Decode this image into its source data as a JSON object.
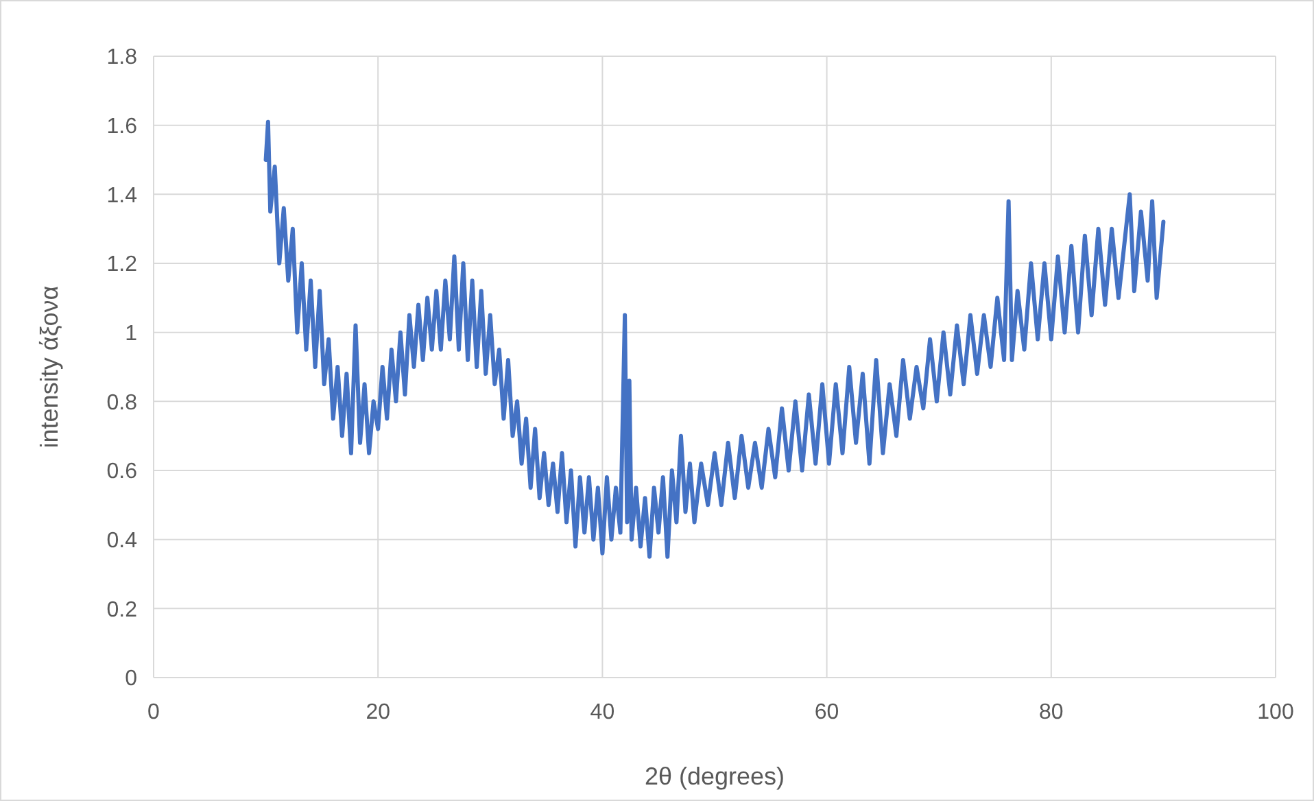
{
  "chart_data": {
    "type": "line",
    "xlabel": "2θ (degrees)",
    "ylabel": "intensity άξονα",
    "xlim": [
      0,
      100
    ],
    "xticks": [
      0,
      20,
      40,
      60,
      80,
      100
    ],
    "ylim": [
      0,
      1.8
    ],
    "yticks": [
      0,
      0.2,
      0.4,
      0.6,
      0.8,
      1,
      1.2,
      1.4,
      1.6,
      1.8
    ],
    "grid": true,
    "marker": "none",
    "line_style": "solid",
    "series": [
      {
        "color": "#4472c4",
        "x": [
          10,
          10.2,
          10.4,
          10.8,
          11.2,
          11.6,
          12,
          12.4,
          12.8,
          13.2,
          13.6,
          14,
          14.4,
          14.8,
          15.2,
          15.6,
          16,
          16.4,
          16.8,
          17.2,
          17.6,
          18,
          18.4,
          18.8,
          19.2,
          19.6,
          20,
          20.4,
          20.8,
          21.2,
          21.6,
          22,
          22.4,
          22.8,
          23.2,
          23.6,
          24,
          24.4,
          24.8,
          25.2,
          25.6,
          26,
          26.4,
          26.8,
          27.2,
          27.6,
          28,
          28.4,
          28.8,
          29.2,
          29.6,
          30,
          30.4,
          30.8,
          31.2,
          31.6,
          32,
          32.4,
          32.8,
          33.2,
          33.6,
          34,
          34.4,
          34.8,
          35.2,
          35.6,
          36,
          36.4,
          36.8,
          37.2,
          37.6,
          38,
          38.4,
          38.8,
          39.2,
          39.6,
          40,
          40.4,
          40.8,
          41.2,
          41.6,
          42,
          42.2,
          42.4,
          42.6,
          43,
          43.4,
          43.8,
          44.2,
          44.6,
          45,
          45.4,
          45.8,
          46.2,
          46.6,
          47,
          47.4,
          47.8,
          48.2,
          48.8,
          49.4,
          50,
          50.6,
          51.2,
          51.8,
          52.4,
          53,
          53.6,
          54.2,
          54.8,
          55.4,
          56,
          56.6,
          57.2,
          57.8,
          58.4,
          59,
          59.6,
          60.2,
          60.8,
          61.4,
          62,
          62.6,
          63.2,
          63.8,
          64.4,
          65,
          65.6,
          66.2,
          66.8,
          67.4,
          68,
          68.6,
          69.2,
          69.8,
          70.4,
          71,
          71.6,
          72.2,
          72.8,
          73.4,
          74,
          74.6,
          75.2,
          75.8,
          76.2,
          76.5,
          77,
          77.6,
          78.2,
          78.8,
          79.4,
          80,
          80.6,
          81.2,
          81.8,
          82.4,
          83,
          83.6,
          84.2,
          84.8,
          85.4,
          86,
          86.6,
          87,
          87.4,
          88,
          88.6,
          89,
          89.4,
          90
        ],
        "values": [
          1.5,
          1.61,
          1.35,
          1.48,
          1.2,
          1.36,
          1.15,
          1.3,
          1.0,
          1.2,
          0.95,
          1.15,
          0.9,
          1.12,
          0.85,
          0.98,
          0.75,
          0.9,
          0.7,
          0.88,
          0.65,
          1.02,
          0.68,
          0.85,
          0.65,
          0.8,
          0.72,
          0.9,
          0.75,
          0.95,
          0.8,
          1.0,
          0.82,
          1.05,
          0.9,
          1.08,
          0.92,
          1.1,
          0.95,
          1.12,
          0.95,
          1.15,
          0.98,
          1.22,
          0.95,
          1.2,
          0.92,
          1.15,
          0.9,
          1.12,
          0.88,
          1.05,
          0.85,
          0.95,
          0.75,
          0.92,
          0.7,
          0.8,
          0.62,
          0.75,
          0.55,
          0.72,
          0.52,
          0.65,
          0.5,
          0.62,
          0.48,
          0.65,
          0.45,
          0.6,
          0.38,
          0.58,
          0.42,
          0.58,
          0.4,
          0.55,
          0.36,
          0.58,
          0.4,
          0.55,
          0.42,
          1.05,
          0.45,
          0.86,
          0.4,
          0.55,
          0.38,
          0.52,
          0.35,
          0.55,
          0.42,
          0.58,
          0.35,
          0.6,
          0.45,
          0.7,
          0.48,
          0.62,
          0.45,
          0.62,
          0.5,
          0.65,
          0.5,
          0.68,
          0.52,
          0.7,
          0.55,
          0.68,
          0.55,
          0.72,
          0.58,
          0.78,
          0.6,
          0.8,
          0.6,
          0.82,
          0.62,
          0.85,
          0.62,
          0.85,
          0.65,
          0.9,
          0.68,
          0.88,
          0.62,
          0.92,
          0.65,
          0.85,
          0.7,
          0.92,
          0.75,
          0.9,
          0.78,
          0.98,
          0.8,
          1.0,
          0.82,
          1.02,
          0.85,
          1.05,
          0.88,
          1.05,
          0.9,
          1.1,
          0.92,
          1.38,
          0.92,
          1.12,
          0.95,
          1.2,
          0.98,
          1.2,
          0.98,
          1.22,
          1.0,
          1.25,
          1.0,
          1.28,
          1.05,
          1.3,
          1.08,
          1.3,
          1.1,
          1.28,
          1.4,
          1.12,
          1.35,
          1.15,
          1.38,
          1.1,
          1.32
        ]
      }
    ]
  }
}
